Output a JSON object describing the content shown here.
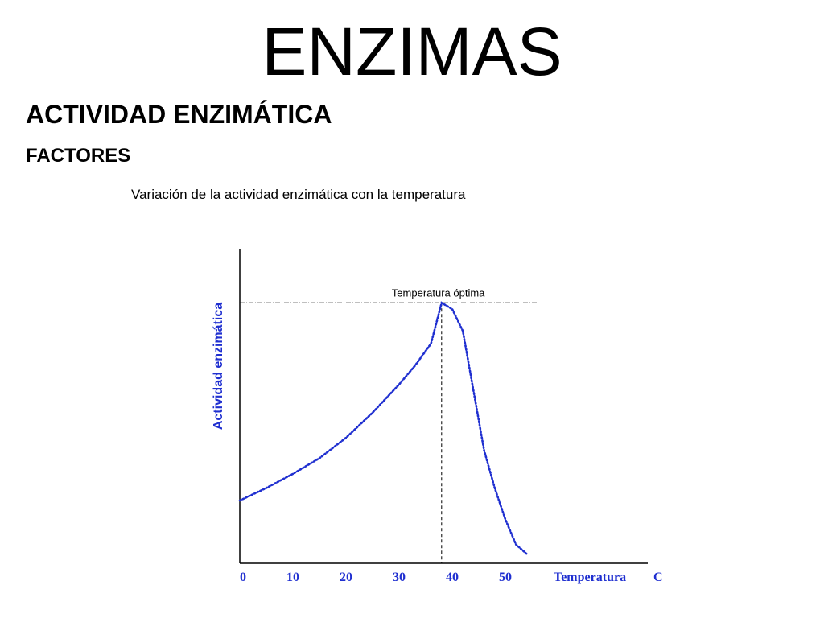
{
  "slide": {
    "title": "ENZIMAS",
    "subtitle": "ACTIVIDAD ENZIMÁTICA",
    "section": "FACTORES"
  },
  "chart_data": {
    "type": "line",
    "title": "Variación de la actividad enzimática con la temperatura",
    "xlabel": "Temperatura",
    "xunit": "C",
    "ylabel": "Actividad enzimática",
    "xticks": [
      0,
      10,
      20,
      30,
      40,
      50
    ],
    "xlim": [
      0,
      78
    ],
    "ylim": [
      0,
      100
    ],
    "grid": false,
    "annotation": {
      "label": "Temperatura óptima",
      "x": 38,
      "y": 83
    },
    "series": [
      {
        "color": "#1f2fd0",
        "style": "dotted",
        "x": [
          0,
          5,
          10,
          15,
          20,
          25,
          30,
          33,
          36,
          38,
          40,
          42,
          44,
          46,
          48,
          50,
          52,
          54
        ],
        "y": [
          20,
          24,
          28.5,
          33.5,
          40,
          48,
          57,
          63,
          70,
          83,
          81,
          74,
          55,
          36,
          24,
          14,
          6,
          3
        ]
      }
    ],
    "colors": {
      "axis": "#000000",
      "series": "#1f2fd0",
      "ylabel": "#1f2fd0",
      "ticks": "#1f2fd0",
      "guides": "#000000"
    }
  }
}
